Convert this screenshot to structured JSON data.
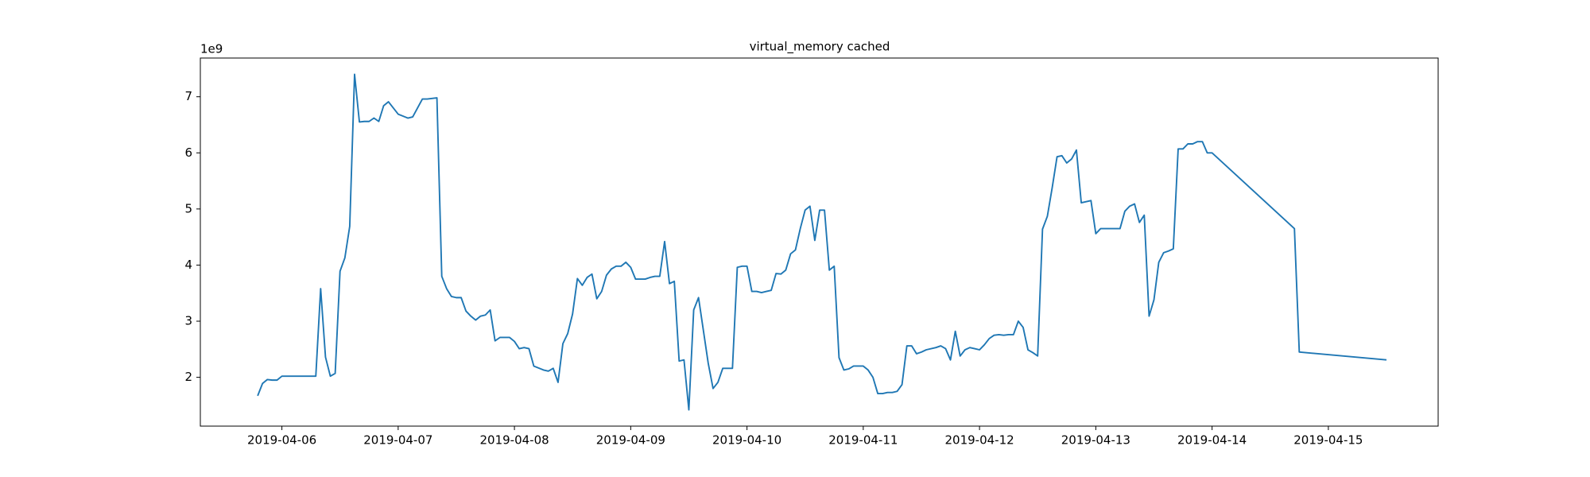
{
  "chart_data": {
    "type": "line",
    "title": "virtual_memory cached",
    "y_offset_label": "1e9",
    "color": "#1f77b4",
    "xlim": [
      "2019-04-05 07:10",
      "2019-04-15 22:40"
    ],
    "xticks": [
      "2019-04-06",
      "2019-04-07",
      "2019-04-08",
      "2019-04-09",
      "2019-04-10",
      "2019-04-11",
      "2019-04-12",
      "2019-04-13",
      "2019-04-14",
      "2019-04-15"
    ],
    "ylim": [
      1.13,
      7.69
    ],
    "yticks": [
      2,
      3,
      4,
      5,
      6,
      7
    ],
    "x": [
      "2019-04-05 19:00",
      "2019-04-05 20:00",
      "2019-04-05 21:00",
      "2019-04-05 22:00",
      "2019-04-05 23:00",
      "2019-04-06 00:00",
      "2019-04-06 02:00",
      "2019-04-06 03:00",
      "2019-04-06 05:00",
      "2019-04-06 07:00",
      "2019-04-06 08:00",
      "2019-04-06 09:00",
      "2019-04-06 10:00",
      "2019-04-06 11:00",
      "2019-04-06 12:00",
      "2019-04-06 13:00",
      "2019-04-06 14:00",
      "2019-04-06 15:00",
      "2019-04-06 16:00",
      "2019-04-06 17:00",
      "2019-04-06 18:00",
      "2019-04-06 19:00",
      "2019-04-06 20:00",
      "2019-04-06 21:00",
      "2019-04-06 22:00",
      "2019-04-06 23:00",
      "2019-04-07 00:00",
      "2019-04-07 02:00",
      "2019-04-07 03:00",
      "2019-04-07 05:00",
      "2019-04-07 06:00",
      "2019-04-07 08:00",
      "2019-04-07 09:00",
      "2019-04-07 10:00",
      "2019-04-07 11:00",
      "2019-04-07 12:00",
      "2019-04-07 13:00",
      "2019-04-07 14:00",
      "2019-04-07 15:00",
      "2019-04-07 16:00",
      "2019-04-07 17:00",
      "2019-04-07 18:00",
      "2019-04-07 19:00",
      "2019-04-07 20:00",
      "2019-04-07 21:00",
      "2019-04-07 22:00",
      "2019-04-07 23:00",
      "2019-04-08 00:00",
      "2019-04-08 01:00",
      "2019-04-08 02:00",
      "2019-04-08 03:00",
      "2019-04-08 04:00",
      "2019-04-08 06:00",
      "2019-04-08 07:00",
      "2019-04-08 08:00",
      "2019-04-08 09:00",
      "2019-04-08 10:00",
      "2019-04-08 11:00",
      "2019-04-08 12:00",
      "2019-04-08 13:00",
      "2019-04-08 14:00",
      "2019-04-08 15:00",
      "2019-04-08 16:00",
      "2019-04-08 17:00",
      "2019-04-08 18:00",
      "2019-04-08 19:00",
      "2019-04-08 20:00",
      "2019-04-08 21:00",
      "2019-04-08 22:00",
      "2019-04-08 23:00",
      "2019-04-09 00:00",
      "2019-04-09 01:00",
      "2019-04-09 03:00",
      "2019-04-09 04:00",
      "2019-04-09 05:00",
      "2019-04-09 06:00",
      "2019-04-09 07:00",
      "2019-04-09 08:00",
      "2019-04-09 09:00",
      "2019-04-09 10:00",
      "2019-04-09 11:00",
      "2019-04-09 12:00",
      "2019-04-09 13:00",
      "2019-04-09 14:00",
      "2019-04-09 16:00",
      "2019-04-09 17:00",
      "2019-04-09 18:00",
      "2019-04-09 19:00",
      "2019-04-09 20:00",
      "2019-04-09 21:00",
      "2019-04-09 22:00",
      "2019-04-09 23:00",
      "2019-04-10 00:00",
      "2019-04-10 01:00",
      "2019-04-10 02:00",
      "2019-04-10 03:00",
      "2019-04-10 04:00",
      "2019-04-10 05:00",
      "2019-04-10 06:00",
      "2019-04-10 07:00",
      "2019-04-10 08:00",
      "2019-04-10 09:00",
      "2019-04-10 10:00",
      "2019-04-10 11:00",
      "2019-04-10 12:00",
      "2019-04-10 13:00",
      "2019-04-10 14:00",
      "2019-04-10 15:00",
      "2019-04-10 16:00",
      "2019-04-10 17:00",
      "2019-04-10 18:00",
      "2019-04-10 19:00",
      "2019-04-10 20:00",
      "2019-04-10 21:00",
      "2019-04-10 22:00",
      "2019-04-10 23:00",
      "2019-04-11 00:00",
      "2019-04-11 01:00",
      "2019-04-11 02:00",
      "2019-04-11 03:00",
      "2019-04-11 04:00",
      "2019-04-11 05:00",
      "2019-04-11 06:00",
      "2019-04-11 07:00",
      "2019-04-11 08:00",
      "2019-04-11 09:00",
      "2019-04-11 10:00",
      "2019-04-11 11:00",
      "2019-04-11 12:00",
      "2019-04-11 13:00",
      "2019-04-11 15:00",
      "2019-04-11 16:00",
      "2019-04-11 17:00",
      "2019-04-11 18:00",
      "2019-04-11 19:00",
      "2019-04-11 20:00",
      "2019-04-11 21:00",
      "2019-04-11 22:00",
      "2019-04-11 23:00",
      "2019-04-12 00:00",
      "2019-04-12 01:00",
      "2019-04-12 02:00",
      "2019-04-12 03:00",
      "2019-04-12 04:00",
      "2019-04-12 05:00",
      "2019-04-12 06:00",
      "2019-04-12 07:00",
      "2019-04-12 08:00",
      "2019-04-12 09:00",
      "2019-04-12 10:00",
      "2019-04-12 11:00",
      "2019-04-12 12:00",
      "2019-04-12 13:00",
      "2019-04-12 14:00",
      "2019-04-12 15:00",
      "2019-04-12 16:00",
      "2019-04-12 17:00",
      "2019-04-12 18:00",
      "2019-04-12 19:00",
      "2019-04-12 20:00",
      "2019-04-12 21:00",
      "2019-04-12 22:00",
      "2019-04-12 23:00",
      "2019-04-13 00:00",
      "2019-04-13 01:00",
      "2019-04-13 02:00",
      "2019-04-13 03:00",
      "2019-04-13 04:00",
      "2019-04-13 05:00",
      "2019-04-13 06:00",
      "2019-04-13 07:00",
      "2019-04-13 08:00",
      "2019-04-13 09:00",
      "2019-04-13 10:00",
      "2019-04-13 11:00",
      "2019-04-13 12:00",
      "2019-04-13 13:00",
      "2019-04-13 14:00",
      "2019-04-13 15:00",
      "2019-04-13 16:00",
      "2019-04-13 17:00",
      "2019-04-13 18:00",
      "2019-04-13 19:00",
      "2019-04-13 20:00",
      "2019-04-13 21:00",
      "2019-04-13 22:00",
      "2019-04-13 23:00",
      "2019-04-14 00:00",
      "2019-04-14 17:00",
      "2019-04-14 18:00",
      "2019-04-15 12:00"
    ],
    "values": [
      1.67,
      1.89,
      1.96,
      1.95,
      1.95,
      2.02,
      2.02,
      2.02,
      2.02,
      2.02,
      3.58,
      2.36,
      2.02,
      2.07,
      3.89,
      4.13,
      4.69,
      7.4,
      6.55,
      6.56,
      6.56,
      6.62,
      6.56,
      6.84,
      6.91,
      6.8,
      6.69,
      6.62,
      6.64,
      6.96,
      6.96,
      6.98,
      3.8,
      3.58,
      3.44,
      3.42,
      3.42,
      3.18,
      3.09,
      3.02,
      3.09,
      3.11,
      3.2,
      2.65,
      2.71,
      2.71,
      2.71,
      2.64,
      2.51,
      2.53,
      2.51,
      2.2,
      2.13,
      2.11,
      2.16,
      1.91,
      2.6,
      2.78,
      3.13,
      3.76,
      3.64,
      3.78,
      3.84,
      3.4,
      3.53,
      3.82,
      3.93,
      3.98,
      3.98,
      4.05,
      3.96,
      3.75,
      3.75,
      3.78,
      3.8,
      3.8,
      4.42,
      3.67,
      3.71,
      2.29,
      2.31,
      1.42,
      3.2,
      3.42,
      2.25,
      1.8,
      1.91,
      2.16,
      2.16,
      2.16,
      3.96,
      3.98,
      3.98,
      3.53,
      3.53,
      3.51,
      3.53,
      3.55,
      3.85,
      3.84,
      3.91,
      4.2,
      4.27,
      4.65,
      4.98,
      5.05,
      4.44,
      4.98,
      4.98,
      3.91,
      3.98,
      2.35,
      2.13,
      2.15,
      2.2,
      2.2,
      2.2,
      2.13,
      2.0,
      1.71,
      1.71,
      1.73,
      1.73,
      1.75,
      1.87,
      2.56,
      2.56,
      2.42,
      2.45,
      2.49,
      2.53,
      2.56,
      2.51,
      2.31,
      2.82,
      2.38,
      2.49,
      2.53,
      2.51,
      2.49,
      2.58,
      2.69,
      2.75,
      2.76,
      2.75,
      2.76,
      2.76,
      3.0,
      2.89,
      2.49,
      2.44,
      2.38,
      4.64,
      4.87,
      5.38,
      5.93,
      5.95,
      5.82,
      5.89,
      6.05,
      5.11,
      5.13,
      5.15,
      4.56,
      4.65,
      4.65,
      4.65,
      4.65,
      4.65,
      4.96,
      5.05,
      5.09,
      4.76,
      4.89,
      3.09,
      3.38,
      4.05,
      4.22,
      4.25,
      4.29,
      6.07,
      6.07,
      6.16,
      6.16,
      6.2,
      6.2,
      6.0,
      6.0,
      4.65,
      2.45,
      2.31
    ]
  }
}
